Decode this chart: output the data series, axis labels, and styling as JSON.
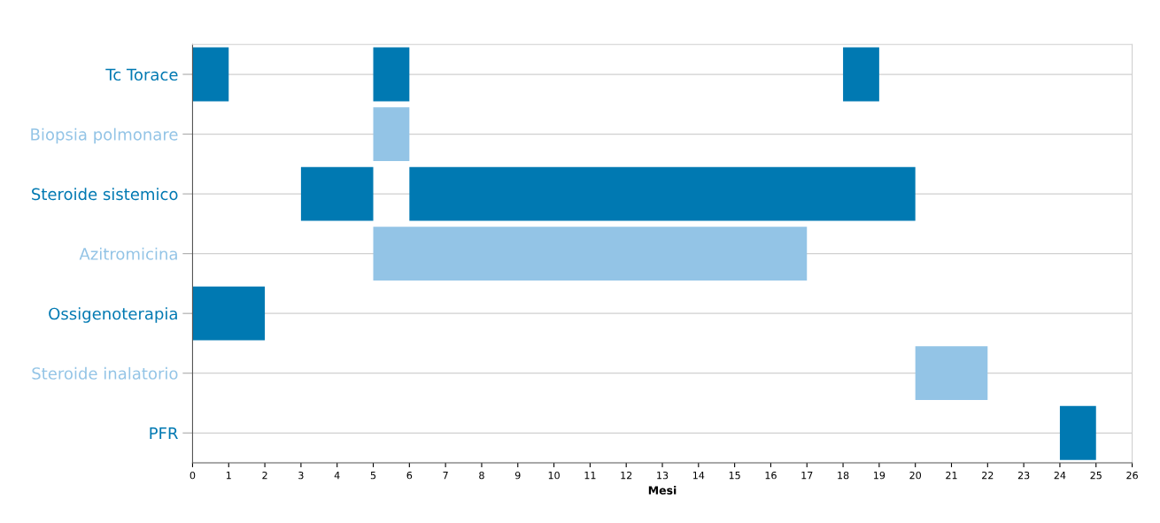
{
  "chart_data": {
    "type": "bar",
    "orientation": "horizontal",
    "xlabel": "Mesi",
    "categories": [
      "Tc Torace",
      "Biopsia polmonare",
      "Steroide sistemico",
      "Azitromicina",
      "Ossigenoterapia",
      "Steroide inalatorio",
      "PFR"
    ],
    "series": [
      {
        "values": [
          1,
          1,
          2,
          12,
          2,
          2,
          1
        ],
        "base": [
          0,
          5,
          3,
          5,
          0,
          20,
          24
        ],
        "colors": [
          "#0079b2",
          "#93c4e6",
          "#0079b2",
          "#93c4e6",
          "#0079b2",
          "#93c4e6",
          "#0079b2"
        ]
      },
      {
        "values": [
          1,
          null,
          14,
          null,
          null,
          null,
          null
        ],
        "base": [
          5,
          null,
          6,
          null,
          null,
          null,
          null
        ],
        "colors": [
          "#0079b2",
          null,
          "#0079b2",
          null,
          null,
          null,
          null
        ]
      },
      {
        "values": [
          1,
          null,
          null,
          null,
          null,
          null,
          null
        ],
        "base": [
          18,
          null,
          null,
          null,
          null,
          null,
          null
        ],
        "colors": [
          "#0079b2",
          null,
          null,
          null,
          null,
          null,
          null
        ]
      }
    ],
    "xlim": [
      0,
      26
    ],
    "xticks": [
      0,
      1,
      2,
      3,
      4,
      5,
      6,
      7,
      8,
      9,
      10,
      11,
      12,
      13,
      14,
      15,
      16,
      17,
      18,
      19,
      20,
      21,
      22,
      23,
      24,
      25,
      26
    ],
    "grid": "y"
  }
}
